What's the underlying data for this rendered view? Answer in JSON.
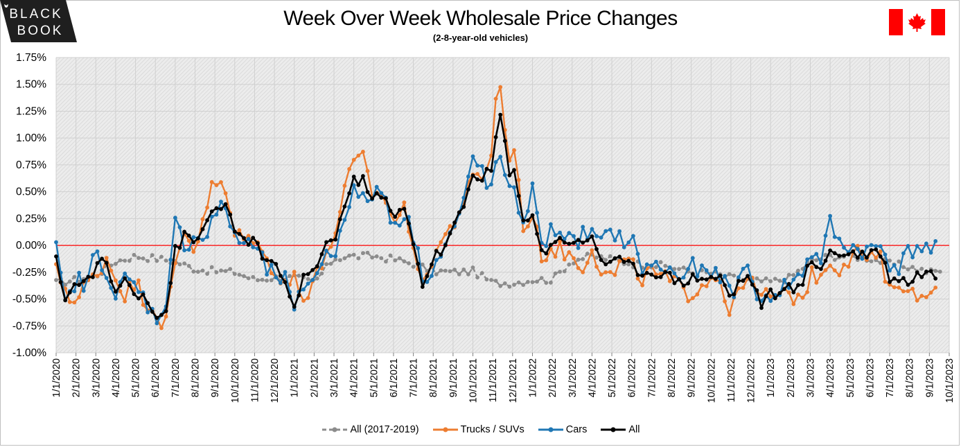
{
  "header": {
    "logo_text_line1": "BLACK",
    "logo_text_line2": "BOOK",
    "title": "Week Over Week Wholesale Price Changes",
    "subtitle": "(2-8-year-old vehicles)",
    "flag": "canada-flag-icon"
  },
  "colors": {
    "all_2017_2019": "#8c8c8c",
    "trucks_suvs": "#ed7d31",
    "cars": "#1f77b4",
    "all": "#000000",
    "zero_line": "#ff0000",
    "plot_bg": "#e6e6e6",
    "grid": "#d0d0d0"
  },
  "chart_data": {
    "type": "line",
    "title": "Week Over Week Wholesale Price Changes",
    "subtitle": "(2-8-year-old vehicles)",
    "xlabel": "",
    "ylabel": "",
    "ylim": [
      -1.0,
      1.75
    ],
    "y_ticks": [
      "1.75%",
      "1.50%",
      "1.25%",
      "1.00%",
      "0.75%",
      "0.50%",
      "0.25%",
      "0.00%",
      "-0.25%",
      "-0.50%",
      "-0.75%",
      "-1.00%"
    ],
    "x_ticks": [
      "1/1/2020",
      "2/1/2020",
      "3/1/2020",
      "4/1/2020",
      "5/1/2020",
      "6/1/2020",
      "7/1/2020",
      "8/1/2020",
      "9/1/2020",
      "10/1/2020",
      "11/1/2020",
      "12/1/2020",
      "1/1/2021",
      "2/1/2021",
      "3/1/2021",
      "4/1/2021",
      "5/1/2021",
      "6/1/2021",
      "7/1/2021",
      "8/1/2021",
      "9/1/2021",
      "10/1/2021",
      "11/1/2021",
      "12/1/2021",
      "1/1/2022",
      "2/1/2022",
      "3/1/2022",
      "4/1/2022",
      "5/1/2022",
      "6/1/2022",
      "7/1/2022",
      "8/1/2022",
      "9/1/2022",
      "10/1/2022",
      "11/1/2022",
      "12/1/2022",
      "1/1/2023",
      "2/1/2023",
      "3/1/2023",
      "4/1/2023",
      "5/1/2023",
      "6/1/2023",
      "7/1/2023",
      "8/1/2023",
      "9/1/2023",
      "10/1/2023"
    ],
    "x_unit": "months since 1/1/2020 (monthly anchor values, interpolated weekly)",
    "grid": true,
    "legend_position": "bottom",
    "series": [
      {
        "name": "All (2017-2019)",
        "style": "dashed",
        "color": "#8c8c8c",
        "monthly_x": [
          0,
          1,
          2,
          3,
          4,
          5,
          6,
          7,
          8,
          9,
          10,
          11,
          12,
          13,
          14,
          15,
          16,
          17,
          18,
          19,
          20,
          21,
          22,
          23,
          24,
          25,
          26,
          27,
          28,
          29,
          30,
          31,
          32,
          33,
          34,
          35,
          36,
          37,
          38,
          39,
          40,
          41,
          42,
          43,
          44,
          45
        ],
        "monthly_values": [
          -0.35,
          -0.32,
          -0.28,
          -0.15,
          -0.1,
          -0.12,
          -0.15,
          -0.22,
          -0.24,
          -0.25,
          -0.32,
          -0.3,
          -0.3,
          -0.35,
          -0.12,
          -0.1,
          -0.1,
          -0.13,
          -0.17,
          -0.24,
          -0.25,
          -0.24,
          -0.35,
          -0.35,
          -0.32,
          -0.32,
          -0.14,
          -0.1,
          -0.13,
          -0.17,
          -0.18,
          -0.2,
          -0.25,
          -0.26,
          -0.3,
          -0.33,
          -0.34,
          -0.3,
          -0.15,
          -0.1,
          -0.1,
          -0.12,
          -0.17,
          -0.2,
          -0.25,
          -0.22
        ]
      },
      {
        "name": "Trucks / SUVs",
        "style": "solid",
        "color": "#ed7d31",
        "monthly_x": [
          0,
          0.5,
          1,
          1.5,
          2,
          2.5,
          3,
          3.5,
          4,
          4.5,
          5,
          5.5,
          6,
          6.5,
          7,
          7.5,
          8,
          8.5,
          9,
          9.5,
          10,
          10.5,
          11,
          11.5,
          12,
          12.5,
          13,
          13.5,
          14,
          14.5,
          15,
          15.5,
          16,
          16.5,
          17,
          17.5,
          18,
          18.5,
          19,
          19.5,
          20,
          20.5,
          21,
          21.5,
          22,
          22.25,
          22.5,
          22.75,
          23,
          23.5,
          24,
          24.5,
          25,
          25.5,
          26,
          26.5,
          27,
          27.5,
          28,
          28.5,
          29,
          29.5,
          30,
          30.5,
          31,
          31.5,
          32,
          32.5,
          33,
          33.5,
          34,
          34.5,
          35,
          35.5,
          36,
          36.5,
          37,
          37.5,
          38,
          38.5,
          39,
          39.5,
          40,
          40.5,
          41,
          41.5,
          42,
          42.5,
          43,
          43.5,
          44,
          44.5
        ],
        "monthly_values": [
          -0.25,
          -0.4,
          -0.55,
          -0.35,
          -0.3,
          -0.1,
          -0.3,
          -0.45,
          -0.35,
          -0.5,
          -0.6,
          -0.75,
          -0.2,
          0.15,
          -0.05,
          0.35,
          0.6,
          0.5,
          0.1,
          0.05,
          0.1,
          -0.15,
          -0.2,
          -0.35,
          -0.3,
          -0.55,
          -0.2,
          -0.2,
          0.1,
          0.5,
          0.75,
          0.8,
          0.45,
          0.5,
          0.2,
          0.35,
          0.05,
          -0.45,
          -0.05,
          0.05,
          0.2,
          0.4,
          0.6,
          0.65,
          0.9,
          1.6,
          1.45,
          0.6,
          1.1,
          0.2,
          0.25,
          -0.1,
          -0.02,
          -0.05,
          -0.1,
          -0.2,
          0.0,
          -0.25,
          -0.3,
          -0.15,
          -0.2,
          -0.3,
          -0.25,
          -0.3,
          -0.35,
          -0.4,
          -0.45,
          -0.35,
          -0.3,
          -0.3,
          -0.7,
          -0.3,
          -0.35,
          -0.5,
          -0.45,
          -0.5,
          -0.45,
          -0.5,
          -0.3,
          -0.25,
          -0.15,
          -0.2,
          -0.1,
          -0.05,
          -0.15,
          -0.1,
          -0.45,
          -0.3,
          -0.45,
          -0.5,
          -0.35,
          -0.5
        ]
      },
      {
        "name": "Cars",
        "style": "solid",
        "color": "#1f77b4",
        "monthly_x": [
          0,
          0.5,
          1,
          1.5,
          2,
          2.5,
          3,
          3.5,
          4,
          4.5,
          5,
          5.5,
          6,
          6.5,
          7,
          7.5,
          8,
          8.5,
          9,
          9.5,
          10,
          10.5,
          11,
          11.5,
          12,
          12.5,
          13,
          13.5,
          14,
          14.5,
          15,
          15.5,
          16,
          16.5,
          17,
          17.5,
          18,
          18.5,
          19,
          19.5,
          20,
          20.5,
          21,
          21.5,
          22,
          22.25,
          22.5,
          22.75,
          23,
          23.5,
          24,
          24.5,
          25,
          25.5,
          26,
          26.5,
          27,
          27.5,
          28,
          28.5,
          29,
          29.5,
          30,
          30.5,
          31,
          31.5,
          32,
          32.5,
          33,
          33.5,
          34,
          34.5,
          35,
          35.5,
          36,
          36.5,
          37,
          37.5,
          38,
          38.5,
          39,
          39.5,
          40,
          40.5,
          41,
          41.5,
          42,
          42.5,
          43,
          43.5,
          44,
          44.5
        ],
        "monthly_values": [
          -0.05,
          -0.6,
          -0.3,
          -0.4,
          -0.05,
          -0.2,
          -0.5,
          -0.3,
          -0.4,
          -0.5,
          -0.7,
          -0.55,
          0.2,
          0.0,
          0.1,
          0.05,
          0.3,
          0.35,
          0.1,
          0.0,
          0.0,
          -0.2,
          -0.3,
          -0.3,
          -0.65,
          -0.35,
          -0.3,
          -0.1,
          -0.1,
          0.3,
          0.5,
          0.4,
          0.5,
          0.5,
          0.2,
          0.3,
          0.1,
          -0.3,
          -0.2,
          -0.05,
          0.15,
          0.35,
          0.8,
          0.7,
          0.45,
          0.95,
          0.75,
          0.45,
          0.5,
          0.25,
          0.5,
          0.0,
          0.15,
          0.15,
          0.0,
          0.1,
          0.1,
          0.0,
          0.15,
          0.05,
          0.05,
          -0.2,
          -0.2,
          -0.2,
          -0.25,
          -0.3,
          -0.2,
          -0.25,
          -0.3,
          -0.25,
          -0.5,
          -0.25,
          -0.2,
          -0.6,
          -0.45,
          -0.4,
          -0.35,
          -0.3,
          -0.05,
          -0.15,
          0.2,
          0.0,
          0.0,
          -0.05,
          -0.05,
          0.0,
          -0.15,
          -0.2,
          -0.05,
          0.0,
          -0.05,
          -0.05
        ]
      },
      {
        "name": "All",
        "style": "solid",
        "color": "#000000",
        "monthly_x": [
          0,
          0.5,
          1,
          1.5,
          2,
          2.5,
          3,
          3.5,
          4,
          4.5,
          5,
          5.5,
          6,
          6.5,
          7,
          7.5,
          8,
          8.5,
          9,
          9.5,
          10,
          10.5,
          11,
          11.5,
          12,
          12.5,
          13,
          13.5,
          14,
          14.5,
          15,
          15.5,
          16,
          16.5,
          17,
          17.5,
          18,
          18.5,
          19,
          19.5,
          20,
          20.5,
          21,
          21.5,
          22,
          22.25,
          22.5,
          22.75,
          23,
          23.5,
          24,
          24.5,
          25,
          25.5,
          26,
          26.5,
          27,
          27.5,
          28,
          28.5,
          29,
          29.5,
          30,
          30.5,
          31,
          31.5,
          32,
          32.5,
          33,
          33.5,
          34,
          34.5,
          35,
          35.5,
          36,
          36.5,
          37,
          37.5,
          38,
          38.5,
          39,
          39.5,
          40,
          40.5,
          41,
          41.5,
          42,
          42.5,
          43,
          43.5,
          44,
          44.5
        ],
        "monthly_values": [
          -0.15,
          -0.5,
          -0.35,
          -0.35,
          -0.2,
          -0.15,
          -0.45,
          -0.3,
          -0.45,
          -0.45,
          -0.65,
          -0.65,
          -0.05,
          0.1,
          0.0,
          0.2,
          0.35,
          0.4,
          0.1,
          0.05,
          0.05,
          -0.15,
          -0.2,
          -0.3,
          -0.6,
          -0.3,
          -0.25,
          0.0,
          0.05,
          0.35,
          0.6,
          0.6,
          0.45,
          0.45,
          0.25,
          0.35,
          0.05,
          -0.4,
          -0.1,
          -0.05,
          0.15,
          0.35,
          0.65,
          0.65,
          0.7,
          1.2,
          1.22,
          0.6,
          0.75,
          0.25,
          0.3,
          -0.1,
          0.05,
          0.05,
          0.05,
          0.0,
          0.1,
          -0.15,
          -0.15,
          -0.15,
          -0.2,
          -0.25,
          -0.25,
          -0.25,
          -0.3,
          -0.35,
          -0.3,
          -0.3,
          -0.3,
          -0.3,
          -0.5,
          -0.3,
          -0.3,
          -0.55,
          -0.45,
          -0.45,
          -0.4,
          -0.4,
          -0.15,
          -0.2,
          -0.05,
          -0.1,
          -0.05,
          -0.1,
          -0.05,
          -0.05,
          -0.3,
          -0.3,
          -0.35,
          -0.25,
          -0.25,
          -0.3
        ]
      }
    ]
  },
  "legend": {
    "items": [
      "All (2017-2019)",
      "Trucks / SUVs",
      "Cars",
      "All"
    ]
  }
}
